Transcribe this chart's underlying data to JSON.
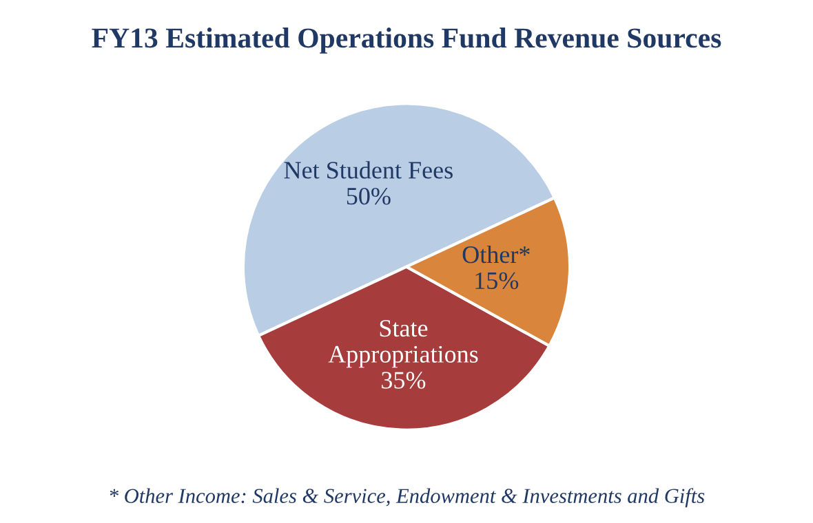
{
  "chart_data": {
    "type": "pie",
    "title": "FY13 Estimated Operations Fund Revenue Sources",
    "categories": [
      "Net Student Fees",
      "State Appropriations",
      "Other*"
    ],
    "values": [
      50,
      35,
      15
    ],
    "value_labels": [
      "50%",
      "35%",
      "15%"
    ],
    "colors": [
      "#b9cde5",
      "#a63c3c",
      "#d9853b"
    ],
    "annotations": [
      "* Other Income: Sales & Service, Endowment & Investments and Gifts"
    ]
  }
}
